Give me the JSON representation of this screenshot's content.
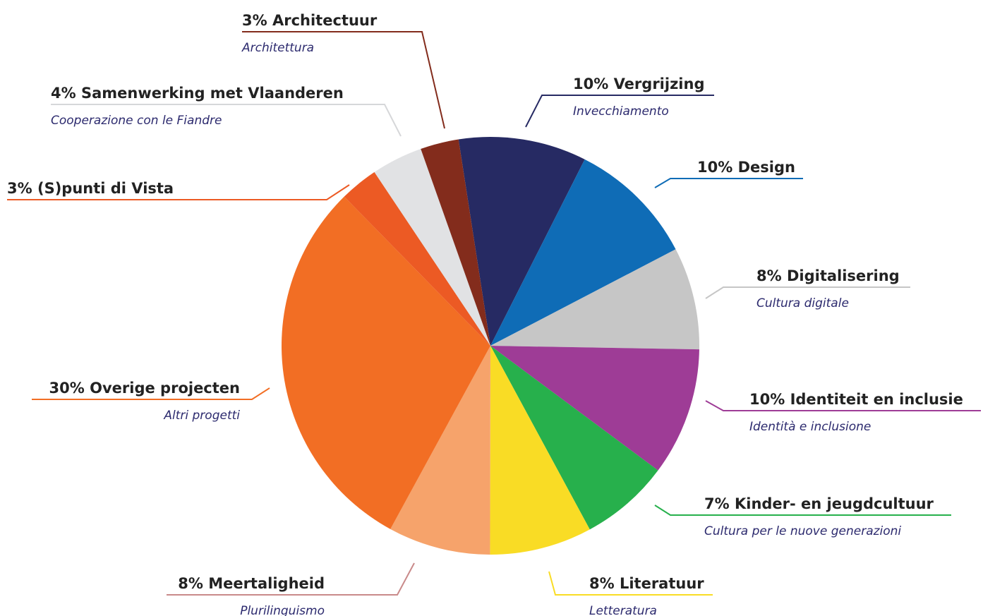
{
  "chart_data": {
    "type": "pie",
    "categories": [
      "Vergrijzing",
      "Design",
      "Digitalisering",
      "Identiteit en inclusie",
      "Kinder- en jeugdcultuur",
      "Literatuur",
      "Meertaligheid",
      "Overige projecten",
      "(S)punti di Vista",
      "Samenwerking met Vlaanderen",
      "Architectuur"
    ],
    "sublabels": [
      "Invecchiamento",
      null,
      "Cultura digitale",
      "Identità e inclusione",
      "Cultura per le nuove generazioni",
      "Letteratura",
      "Plurilinguismo",
      "Altri progetti",
      null,
      "Cooperazione con le Fiandre",
      "Architettura"
    ],
    "values": [
      10,
      10,
      8,
      10,
      7,
      8,
      8,
      30,
      3,
      4,
      3
    ],
    "value_labels": [
      "10%",
      "10%",
      "8%",
      "10%",
      "7%",
      "8%",
      "8%",
      "30%",
      "3%",
      "4%",
      "3%"
    ],
    "colors": [
      "#262a63",
      "#0f6cb6",
      "#c6c6c6",
      "#9e3c96",
      "#27b04c",
      "#f9dc25",
      "#f6a36b",
      "#f26e24",
      "#ec5a24",
      "#e1e2e4",
      "#832c1c"
    ]
  }
}
